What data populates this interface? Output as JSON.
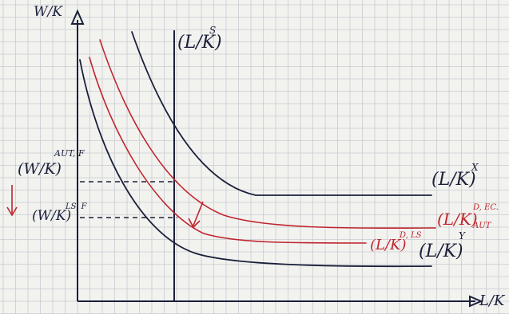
{
  "axes": {
    "y_label": "W/K",
    "x_label": "L/K"
  },
  "labels": {
    "supply_top": "(L/K)",
    "supply_sup": "S",
    "curve_x_main": "(L/K)",
    "curve_x_sup": "X",
    "curve_y_main": "(L/K)",
    "curve_y_sup": "Y",
    "curve_aut_main": "(L/K)",
    "curve_aut_sup": "D, EC.",
    "curve_aut_sub": "AUT",
    "curve_ls_main": "(L/K)",
    "curve_ls_sup": "D, LS",
    "wage_aut_main": "(W/K)",
    "wage_aut_sup": "AUT, F",
    "wage_ls_main": "(W/K)",
    "wage_ls_sup": "LS, F"
  },
  "colors": {
    "ink_dark": "#1a1f3a",
    "ink_red": "#c0242c",
    "grid": "#c9cbd2",
    "paper": "#f2f2ef"
  }
}
